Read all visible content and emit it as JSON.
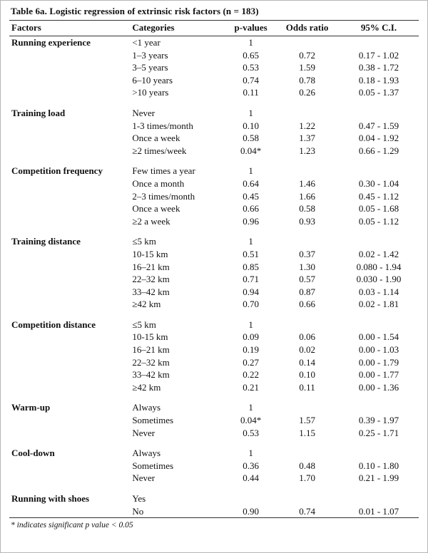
{
  "title": "Table 6a. Logistic regression of extrinsic risk factors (n = 183)",
  "footnote": "* indicates significant p value < 0.05",
  "table": {
    "columns": [
      "Factors",
      "Categories",
      "p-values",
      "Odds ratio",
      "95% C.I."
    ],
    "groups": [
      {
        "factor": "Running experience",
        "rows": [
          {
            "category": "<1 year",
            "p": "1",
            "odds": "",
            "ci": ""
          },
          {
            "category": "1–3 years",
            "p": "0.65",
            "odds": "0.72",
            "ci": "0.17 - 1.02"
          },
          {
            "category": "3–5 years",
            "p": "0.53",
            "odds": "1.59",
            "ci": "0.38 - 1.72"
          },
          {
            "category": "6–10 years",
            "p": "0.74",
            "odds": "0.78",
            "ci": "0.18 - 1.93"
          },
          {
            "category": ">10 years",
            "p": "0.11",
            "odds": "0.26",
            "ci": "0.05 - 1.37"
          }
        ]
      },
      {
        "factor": "Training load",
        "rows": [
          {
            "category": "Never",
            "p": "1",
            "odds": "",
            "ci": ""
          },
          {
            "category": "1-3 times/month",
            "p": "0.10",
            "odds": "1.22",
            "ci": "0.47 - 1.59"
          },
          {
            "category": "Once a week",
            "p": "0.58",
            "odds": "1.37",
            "ci": "0.04 - 1.92"
          },
          {
            "category": "≥2 times/week",
            "p": "0.04*",
            "odds": "1.23",
            "ci": "0.66 - 1.29"
          }
        ]
      },
      {
        "factor": "Competition frequency",
        "rows": [
          {
            "category": "Few times a year",
            "p": "1",
            "odds": "",
            "ci": ""
          },
          {
            "category": "Once a month",
            "p": "0.64",
            "odds": "1.46",
            "ci": "0.30 - 1.04"
          },
          {
            "category": "2–3 times/month",
            "p": "0.45",
            "odds": "1.66",
            "ci": "0.45 - 1.12"
          },
          {
            "category": "Once a week",
            "p": "0.66",
            "odds": "0.58",
            "ci": "0.05 - 1.68"
          },
          {
            "category": "≥2 a week",
            "p": "0.96",
            "odds": "0.93",
            "ci": "0.05 - 1.12"
          }
        ]
      },
      {
        "factor": "Training distance",
        "rows": [
          {
            "category": "≤5 km",
            "p": "1",
            "odds": "",
            "ci": ""
          },
          {
            "category": "10-15 km",
            "p": "0.51",
            "odds": "0.37",
            "ci": "0.02 - 1.42"
          },
          {
            "category": "16–21 km",
            "p": "0.85",
            "odds": "1.30",
            "ci": "0.080 - 1.94"
          },
          {
            "category": "22–32 km",
            "p": "0.71",
            "odds": "0.57",
            "ci": "0.030 - 1.90"
          },
          {
            "category": "33–42 km",
            "p": "0.94",
            "odds": "0.87",
            "ci": "0.03 - 1.14"
          },
          {
            "category": "≥42 km",
            "p": "0.70",
            "odds": "0.66",
            "ci": "0.02 - 1.81"
          }
        ]
      },
      {
        "factor": "Competition distance",
        "rows": [
          {
            "category": "≤5 km",
            "p": "1",
            "odds": "",
            "ci": ""
          },
          {
            "category": "10-15 km",
            "p": "0.09",
            "odds": "0.06",
            "ci": "0.00 - 1.54"
          },
          {
            "category": "16–21 km",
            "p": "0.19",
            "odds": "0.02",
            "ci": "0.00 - 1.03"
          },
          {
            "category": "22–32 km",
            "p": "0.27",
            "odds": "0.14",
            "ci": "0.00 - 1.79"
          },
          {
            "category": "33–42 km",
            "p": "0.22",
            "odds": "0.10",
            "ci": "0.00 - 1.77"
          },
          {
            "category": "≥42 km",
            "p": "0.21",
            "odds": "0.11",
            "ci": "0.00 - 1.36"
          }
        ]
      },
      {
        "factor": "Warm-up",
        "rows": [
          {
            "category": "Always",
            "p": "1",
            "odds": "",
            "ci": ""
          },
          {
            "category": "Sometimes",
            "p": "0.04*",
            "odds": "1.57",
            "ci": "0.39 - 1.97"
          },
          {
            "category": "Never",
            "p": "0.53",
            "odds": "1.15",
            "ci": "0.25 - 1.71"
          }
        ]
      },
      {
        "factor": "Cool-down",
        "rows": [
          {
            "category": "Always",
            "p": "1",
            "odds": "",
            "ci": ""
          },
          {
            "category": "Sometimes",
            "p": "0.36",
            "odds": "0.48",
            "ci": "0.10 - 1.80"
          },
          {
            "category": "Never",
            "p": "0.44",
            "odds": "1.70",
            "ci": "0.21 - 1.99"
          }
        ]
      },
      {
        "factor": "Running with shoes",
        "rows": [
          {
            "category": "Yes",
            "p": "",
            "odds": "",
            "ci": ""
          },
          {
            "category": "No",
            "p": "0.90",
            "odds": "0.74",
            "ci": "0.01 - 1.07"
          }
        ]
      }
    ]
  }
}
